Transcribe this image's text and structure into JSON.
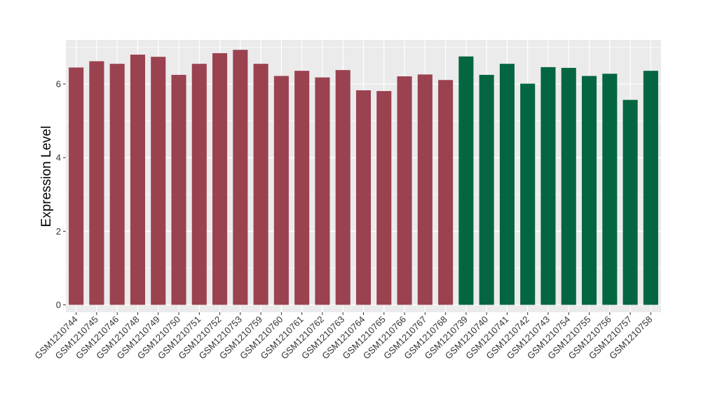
{
  "chart_data": {
    "type": "bar",
    "ylabel": "Expression Level",
    "xlabel": "",
    "ylim": [
      -0.2,
      7.2
    ],
    "yticks": [
      0,
      2,
      4,
      6
    ],
    "grid": true,
    "colors": {
      "group1": "#9a4250",
      "group2": "#036641",
      "panel": "#ebebeb",
      "grid": "#ffffff"
    },
    "categories": [
      "GSM1210744",
      "GSM1210745",
      "GSM1210746",
      "GSM1210748",
      "GSM1210749",
      "GSM1210750",
      "GSM1210751",
      "GSM1210752",
      "GSM1210753",
      "GSM1210759",
      "GSM1210760",
      "GSM1210761",
      "GSM1210762",
      "GSM1210763",
      "GSM1210764",
      "GSM1210765",
      "GSM1210766",
      "GSM1210767",
      "GSM1210768",
      "GSM1210739",
      "GSM1210740",
      "GSM1210741",
      "GSM1210742",
      "GSM1210743",
      "GSM1210754",
      "GSM1210755",
      "GSM1210756",
      "GSM1210757",
      "GSM1210758"
    ],
    "values": [
      6.45,
      6.62,
      6.55,
      6.8,
      6.74,
      6.25,
      6.55,
      6.84,
      6.93,
      6.55,
      6.22,
      6.36,
      6.18,
      6.38,
      5.83,
      5.81,
      6.21,
      6.26,
      6.11,
      6.75,
      6.25,
      6.55,
      6.01,
      6.46,
      6.44,
      6.22,
      6.28,
      5.57,
      6.36
    ],
    "groups": [
      "group1",
      "group1",
      "group1",
      "group1",
      "group1",
      "group1",
      "group1",
      "group1",
      "group1",
      "group1",
      "group1",
      "group1",
      "group1",
      "group1",
      "group1",
      "group1",
      "group1",
      "group1",
      "group1",
      "group2",
      "group2",
      "group2",
      "group2",
      "group2",
      "group2",
      "group2",
      "group2",
      "group2",
      "group2"
    ]
  }
}
